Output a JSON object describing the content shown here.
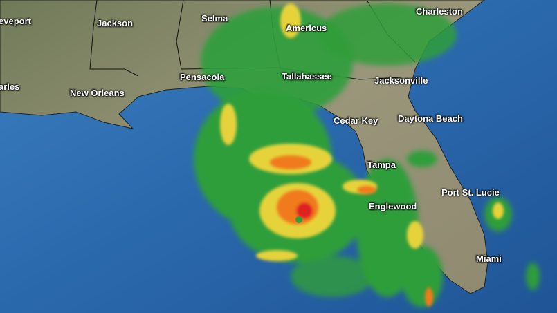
{
  "map": {
    "labels": [
      "eveport",
      "Jackson",
      "Selma",
      "Americus",
      "Charleston",
      "Pensacola",
      "Tallahassee",
      "Jacksonville",
      "arles",
      "New Orleans",
      "Cedar Key",
      "Daytona Beach",
      "Tampa",
      "Port St. Lucie",
      "Englewood",
      "Miami"
    ],
    "colors": {
      "ocean": "#2a6aae",
      "land": "#8c8a6c",
      "radar_light": "#2f9e3a",
      "radar_moderate": "#e6d33a",
      "radar_heavy": "#f07a1a",
      "radar_extreme": "#de2222"
    }
  }
}
